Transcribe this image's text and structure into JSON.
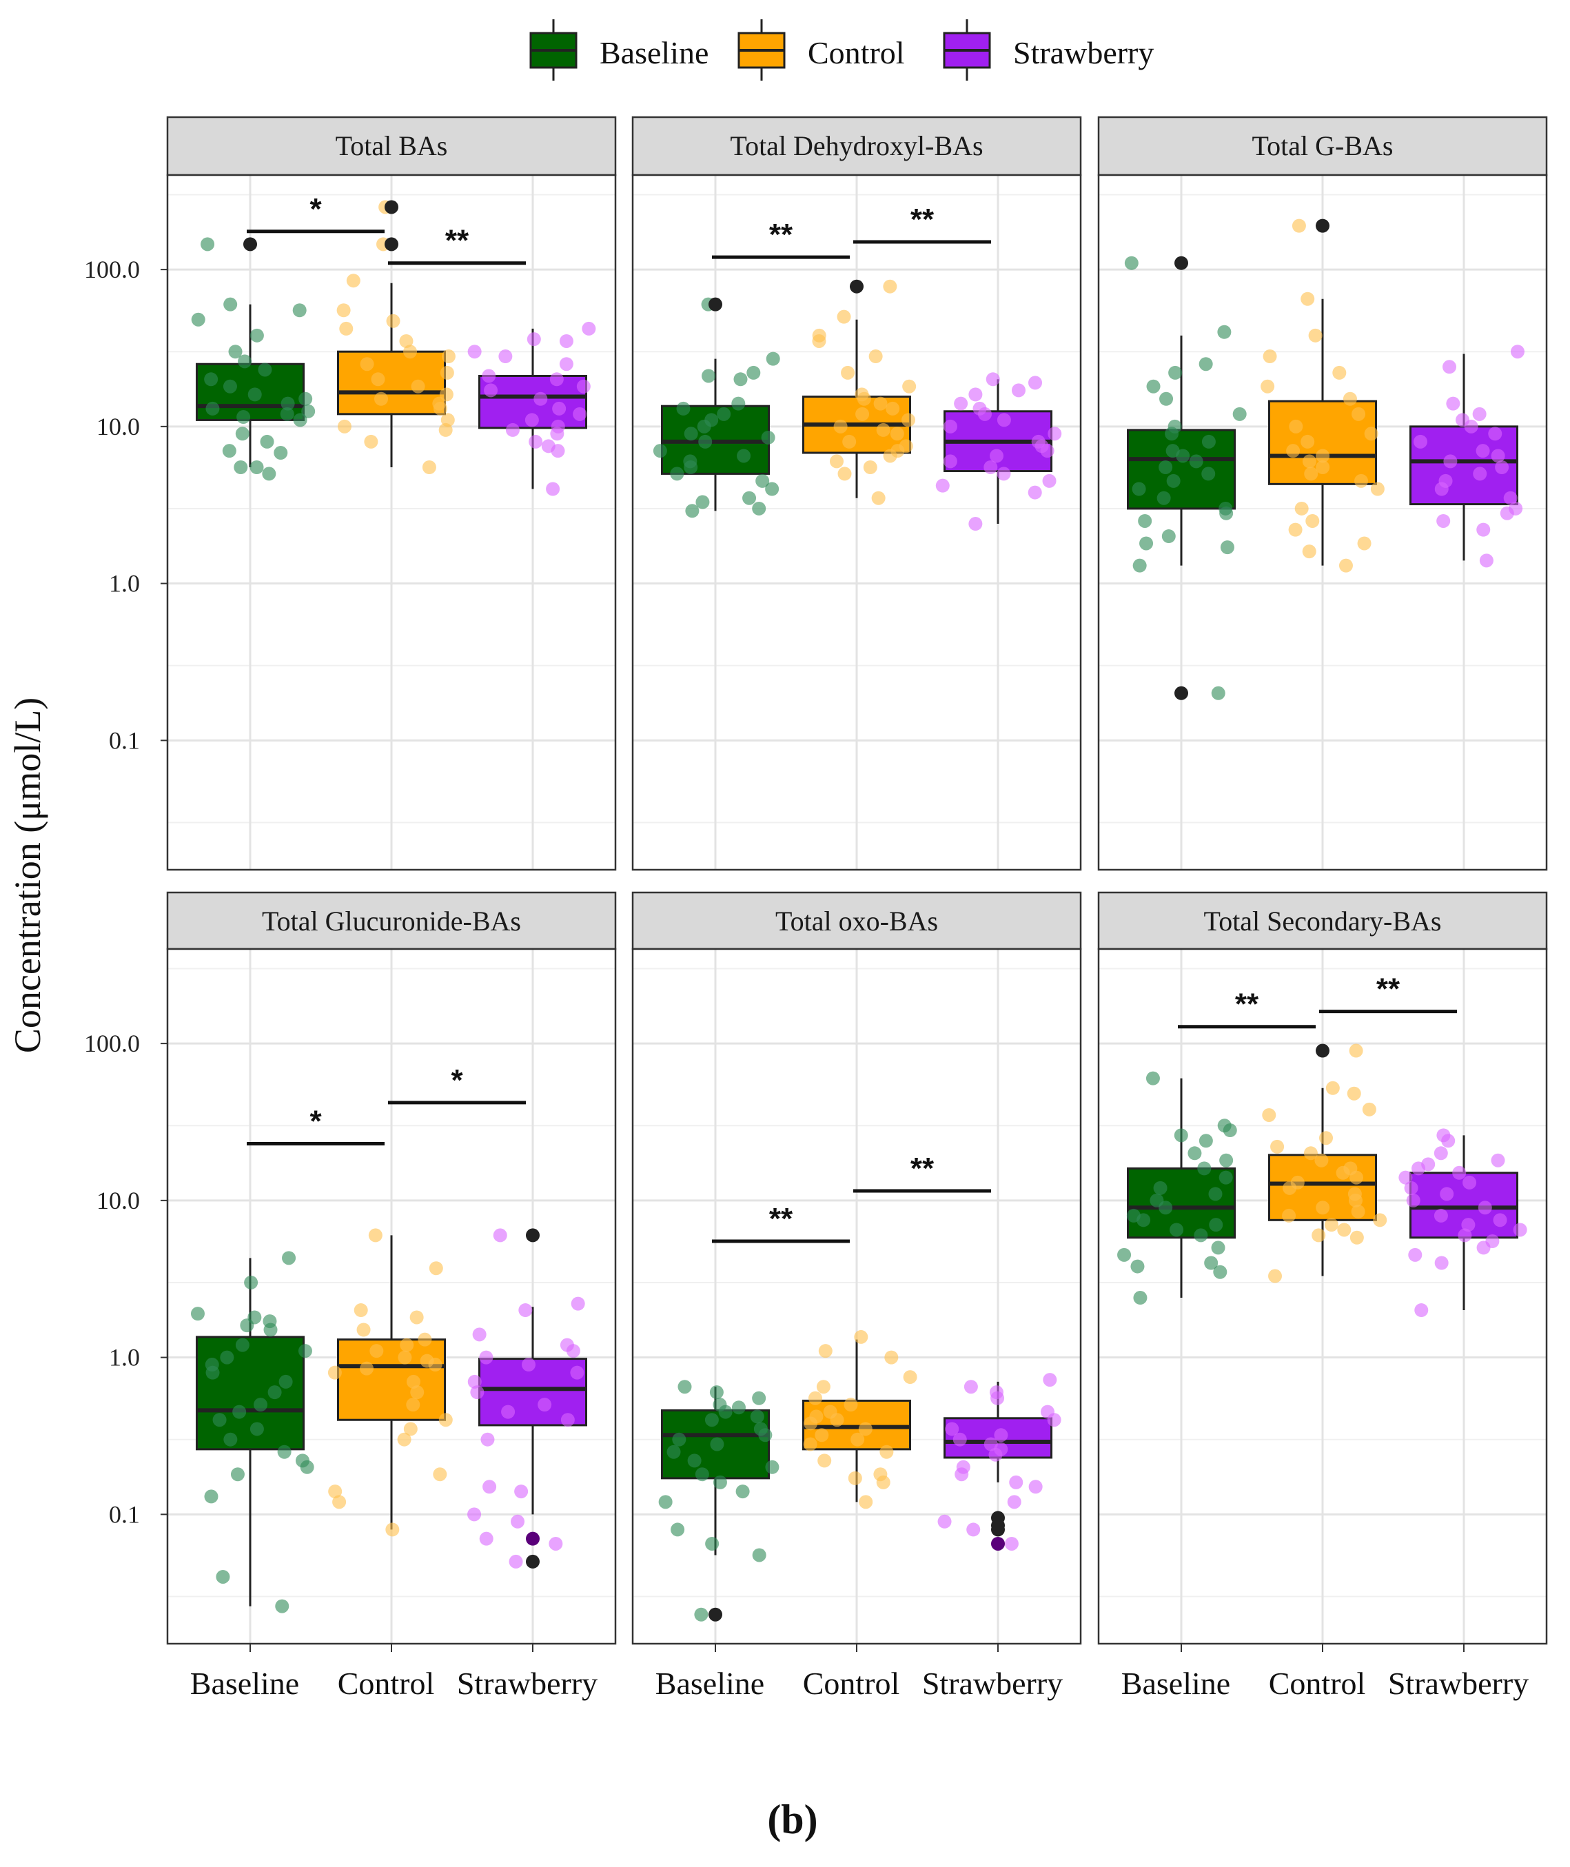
{
  "figure": {
    "caption": "(b)"
  },
  "legend": {
    "items": [
      {
        "label": "Baseline",
        "color": "#006400"
      },
      {
        "label": "Control",
        "color": "#FFA500"
      },
      {
        "label": "Strawberry",
        "color": "#A020F0"
      }
    ]
  },
  "chart_data": {
    "type": "box",
    "ylabel": "Concentration (μmol/L)",
    "yscale": "log10",
    "ylim": [
      0.015,
      400
    ],
    "yticks": [
      0.1,
      1.0,
      10.0,
      100.0
    ],
    "ytick_labels": [
      "0.1",
      "1.0",
      "10.0",
      "100.0"
    ],
    "categories": [
      "Baseline",
      "Control",
      "Strawberry"
    ],
    "colors": {
      "Baseline": "#006400",
      "Control": "#FFA500",
      "Strawberry": "#A020F0"
    },
    "point_colors": {
      "Baseline": "#2E8B57",
      "Control": "#FFC04D",
      "Strawberry": "#D966FF"
    },
    "panels": [
      {
        "title": "Total BAs",
        "boxes": [
          {
            "group": "Baseline",
            "q1": 11,
            "median": 13.5,
            "q3": 25,
            "lower": 5.5,
            "upper": 60,
            "outliers": [
              145
            ]
          },
          {
            "group": "Control",
            "q1": 12,
            "median": 16.5,
            "q3": 30,
            "lower": 5.5,
            "upper": 82,
            "outliers": [
              145,
              250
            ]
          },
          {
            "group": "Strawberry",
            "q1": 9.8,
            "median": 15.5,
            "q3": 21,
            "lower": 4,
            "upper": 42,
            "outliers": []
          }
        ],
        "points": {
          "Baseline": [
            55,
            48,
            38,
            30,
            26,
            23,
            20,
            18,
            16,
            15,
            14,
            13,
            12.5,
            12,
            11.5,
            11,
            9,
            8,
            7,
            6.8,
            5.5,
            5,
            5.5,
            145,
            60
          ],
          "Control": [
            250,
            145,
            85,
            55,
            47,
            42,
            35,
            30,
            28,
            25,
            22,
            20,
            18,
            16,
            15,
            14,
            13,
            11,
            10,
            9.5,
            8,
            5.5
          ],
          "Strawberry": [
            42,
            36,
            35,
            30,
            28,
            25,
            21,
            20,
            18,
            17,
            15,
            13,
            12,
            11,
            10,
            9.5,
            9,
            8,
            7.5,
            7,
            4
          ]
        },
        "brackets": [
          {
            "from": 0,
            "to": 1,
            "y": 175,
            "label": "*"
          },
          {
            "from": 1,
            "to": 2,
            "y": 110,
            "label": "**"
          }
        ]
      },
      {
        "title": "Total Dehydroxyl-BAs",
        "boxes": [
          {
            "group": "Baseline",
            "q1": 5,
            "median": 8,
            "q3": 13.5,
            "lower": 2.9,
            "upper": 27,
            "outliers": [
              60
            ]
          },
          {
            "group": "Control",
            "q1": 6.8,
            "median": 10.3,
            "q3": 15.5,
            "lower": 3.5,
            "upper": 48,
            "outliers": [
              78
            ]
          },
          {
            "group": "Strawberry",
            "q1": 5.2,
            "median": 8,
            "q3": 12.5,
            "lower": 2.4,
            "upper": 20,
            "outliers": []
          }
        ],
        "points": {
          "Baseline": [
            60,
            27,
            22,
            21,
            20,
            14,
            13,
            12,
            11,
            10,
            9,
            8.5,
            8,
            7,
            6.5,
            6,
            5.5,
            5,
            4.5,
            4,
            3.5,
            3.3,
            3,
            2.9
          ],
          "Control": [
            78,
            50,
            38,
            35,
            28,
            22,
            18,
            16,
            15,
            14,
            13,
            12,
            11,
            10,
            9.5,
            9,
            8,
            7.5,
            7,
            6.5,
            6,
            5.5,
            5,
            3.5
          ],
          "Strawberry": [
            20,
            19,
            17,
            16,
            14,
            13,
            12,
            11,
            10,
            9,
            8,
            7.5,
            7,
            6.5,
            6,
            5.5,
            5,
            4.5,
            4.2,
            3.8,
            2.4
          ]
        },
        "brackets": [
          {
            "from": 0,
            "to": 1,
            "y": 120,
            "label": "**"
          },
          {
            "from": 1,
            "to": 2,
            "y": 150,
            "label": "**"
          }
        ]
      },
      {
        "title": "Total G-BAs",
        "boxes": [
          {
            "group": "Baseline",
            "q1": 3,
            "median": 6.2,
            "q3": 9.5,
            "lower": 1.3,
            "upper": 38,
            "outliers": [
              110,
              0.2
            ]
          },
          {
            "group": "Control",
            "q1": 4.3,
            "median": 6.5,
            "q3": 14.5,
            "lower": 1.3,
            "upper": 65,
            "outliers": [
              190
            ]
          },
          {
            "group": "Strawberry",
            "q1": 3.2,
            "median": 6,
            "q3": 10,
            "lower": 1.4,
            "upper": 29,
            "outliers": []
          }
        ],
        "points": {
          "Baseline": [
            110,
            40,
            25,
            22,
            18,
            15,
            12,
            10,
            9,
            8,
            7,
            6.5,
            6,
            5.5,
            5,
            4.5,
            4,
            3.5,
            3,
            2.8,
            2.5,
            2,
            1.8,
            1.7,
            1.3,
            0.2
          ],
          "Control": [
            190,
            65,
            38,
            28,
            22,
            18,
            15,
            12,
            10,
            9,
            8,
            7,
            6.5,
            6,
            5.5,
            5,
            4.5,
            4,
            3,
            2.5,
            2.2,
            1.8,
            1.6,
            1.3
          ],
          "Strawberry": [
            30,
            24,
            14,
            12,
            11,
            10,
            9,
            8,
            7,
            6.5,
            6,
            5.5,
            5,
            4.5,
            4,
            3.5,
            3,
            2.8,
            2.5,
            2.2,
            1.4
          ]
        },
        "brackets": []
      },
      {
        "title": "Total Glucuronide-BAs",
        "boxes": [
          {
            "group": "Baseline",
            "q1": 0.26,
            "median": 0.46,
            "q3": 1.35,
            "lower": 0.026,
            "upper": 4.3,
            "outliers": []
          },
          {
            "group": "Control",
            "q1": 0.4,
            "median": 0.88,
            "q3": 1.3,
            "lower": 0.08,
            "upper": 6,
            "outliers": []
          },
          {
            "group": "Strawberry",
            "q1": 0.37,
            "median": 0.63,
            "q3": 0.98,
            "lower": 0.1,
            "upper": 2.1,
            "outliers": [
              6,
              0.07,
              0.05
            ]
          }
        ],
        "points": {
          "Baseline": [
            4.3,
            3,
            1.9,
            1.8,
            1.7,
            1.6,
            1.5,
            1.2,
            1.1,
            1,
            0.9,
            0.8,
            0.7,
            0.6,
            0.5,
            0.45,
            0.4,
            0.35,
            0.3,
            0.25,
            0.22,
            0.2,
            0.18,
            0.13,
            0.04,
            0.026
          ],
          "Control": [
            6,
            3.7,
            2,
            1.8,
            1.5,
            1.3,
            1.2,
            1.1,
            1,
            0.95,
            0.9,
            0.85,
            0.8,
            0.7,
            0.6,
            0.5,
            0.4,
            0.35,
            0.3,
            0.18,
            0.14,
            0.12,
            0.08
          ],
          "Strawberry": [
            6,
            2.2,
            2,
            1.4,
            1.2,
            1.1,
            1,
            0.9,
            0.8,
            0.7,
            0.6,
            0.5,
            0.45,
            0.4,
            0.3,
            0.15,
            0.14,
            0.1,
            0.09,
            0.07,
            0.065,
            0.05
          ]
        },
        "brackets": [
          {
            "from": 0,
            "to": 1,
            "y": 23,
            "label": "*"
          },
          {
            "from": 1,
            "to": 2,
            "y": 42,
            "label": "*"
          }
        ]
      },
      {
        "title": "Total oxo-BAs",
        "boxes": [
          {
            "group": "Baseline",
            "q1": 0.17,
            "median": 0.32,
            "q3": 0.46,
            "lower": 0.055,
            "upper": 0.65,
            "outliers": [
              0.023
            ]
          },
          {
            "group": "Control",
            "q1": 0.26,
            "median": 0.36,
            "q3": 0.53,
            "lower": 0.12,
            "upper": 1.3,
            "outliers": []
          },
          {
            "group": "Strawberry",
            "q1": 0.23,
            "median": 0.29,
            "q3": 0.41,
            "lower": 0.16,
            "upper": 0.7,
            "outliers": [
              0.095,
              0.085,
              0.08,
              0.065
            ]
          }
        ],
        "points": {
          "Baseline": [
            0.65,
            0.6,
            0.55,
            0.5,
            0.48,
            0.45,
            0.42,
            0.4,
            0.35,
            0.32,
            0.3,
            0.28,
            0.25,
            0.22,
            0.2,
            0.18,
            0.16,
            0.14,
            0.12,
            0.08,
            0.065,
            0.055,
            0.023
          ],
          "Control": [
            1.35,
            1.1,
            1,
            0.75,
            0.65,
            0.55,
            0.5,
            0.45,
            0.42,
            0.4,
            0.38,
            0.35,
            0.32,
            0.3,
            0.28,
            0.25,
            0.22,
            0.18,
            0.17,
            0.16,
            0.12
          ],
          "Strawberry": [
            0.72,
            0.65,
            0.6,
            0.55,
            0.45,
            0.4,
            0.35,
            0.32,
            0.3,
            0.28,
            0.26,
            0.24,
            0.2,
            0.18,
            0.16,
            0.15,
            0.12,
            0.09,
            0.08,
            0.065
          ]
        },
        "brackets": [
          {
            "from": 0,
            "to": 1,
            "y": 5.5,
            "label": "**"
          },
          {
            "from": 1,
            "to": 2,
            "y": 11.5,
            "label": "**"
          }
        ]
      },
      {
        "title": "Total Secondary-BAs",
        "boxes": [
          {
            "group": "Baseline",
            "q1": 5.8,
            "median": 9,
            "q3": 16,
            "lower": 2.4,
            "upper": 60,
            "outliers": []
          },
          {
            "group": "Control",
            "q1": 7.5,
            "median": 12.8,
            "q3": 19.5,
            "lower": 3.3,
            "upper": 52,
            "outliers": [
              90
            ]
          },
          {
            "group": "Strawberry",
            "q1": 5.8,
            "median": 9,
            "q3": 15,
            "lower": 2,
            "upper": 26,
            "outliers": []
          }
        ],
        "points": {
          "Baseline": [
            60,
            30,
            28,
            26,
            24,
            20,
            18,
            16,
            14,
            12,
            11,
            10,
            9,
            8,
            7.5,
            7,
            6.5,
            6,
            5,
            4.5,
            4,
            3.8,
            3.5,
            2.4
          ],
          "Control": [
            90,
            52,
            48,
            38,
            35,
            25,
            22,
            20,
            18,
            16,
            15,
            14,
            13,
            12,
            11,
            10,
            9,
            8.5,
            8,
            7.5,
            7,
            6.5,
            6,
            5.8,
            3.3
          ],
          "Strawberry": [
            26,
            24,
            20,
            18,
            17,
            16,
            15,
            14,
            13,
            12,
            11,
            10,
            9,
            8,
            7.5,
            7,
            6.5,
            6,
            5.5,
            5,
            4.5,
            4,
            2
          ]
        },
        "brackets": [
          {
            "from": 0,
            "to": 1,
            "y": 128,
            "label": "**"
          },
          {
            "from": 1,
            "to": 2,
            "y": 160,
            "label": "**"
          }
        ]
      }
    ]
  }
}
